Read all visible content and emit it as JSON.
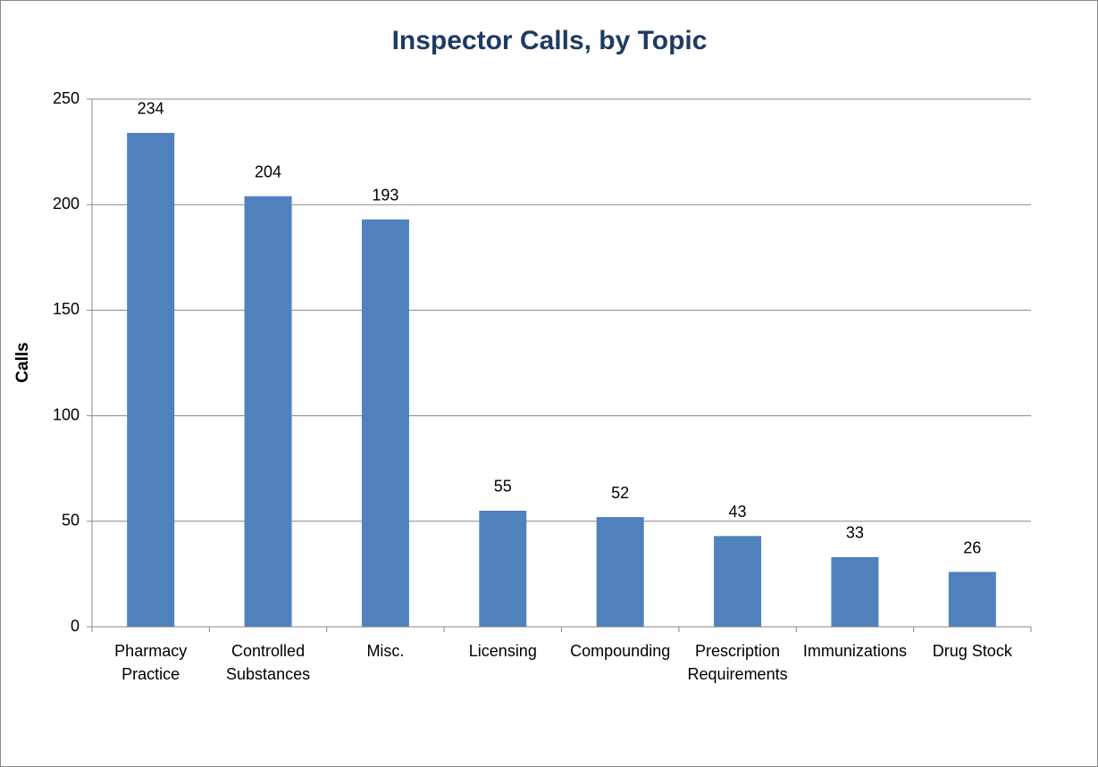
{
  "chart_data": {
    "type": "bar",
    "title": "Inspector Calls, by Topic",
    "y_label": "Calls",
    "categories": [
      "Pharmacy Practice",
      "Controlled Substances",
      "Misc.",
      "Licensing",
      "Compounding",
      "Prescription Requirements",
      "Immunizations",
      "Drug Stock"
    ],
    "values": [
      234,
      204,
      193,
      55,
      52,
      43,
      33,
      26
    ],
    "color": "#4f81bd",
    "ylim": [
      0,
      250
    ],
    "yticks": [
      0,
      50,
      100,
      150,
      200,
      250
    ],
    "grid": true
  }
}
